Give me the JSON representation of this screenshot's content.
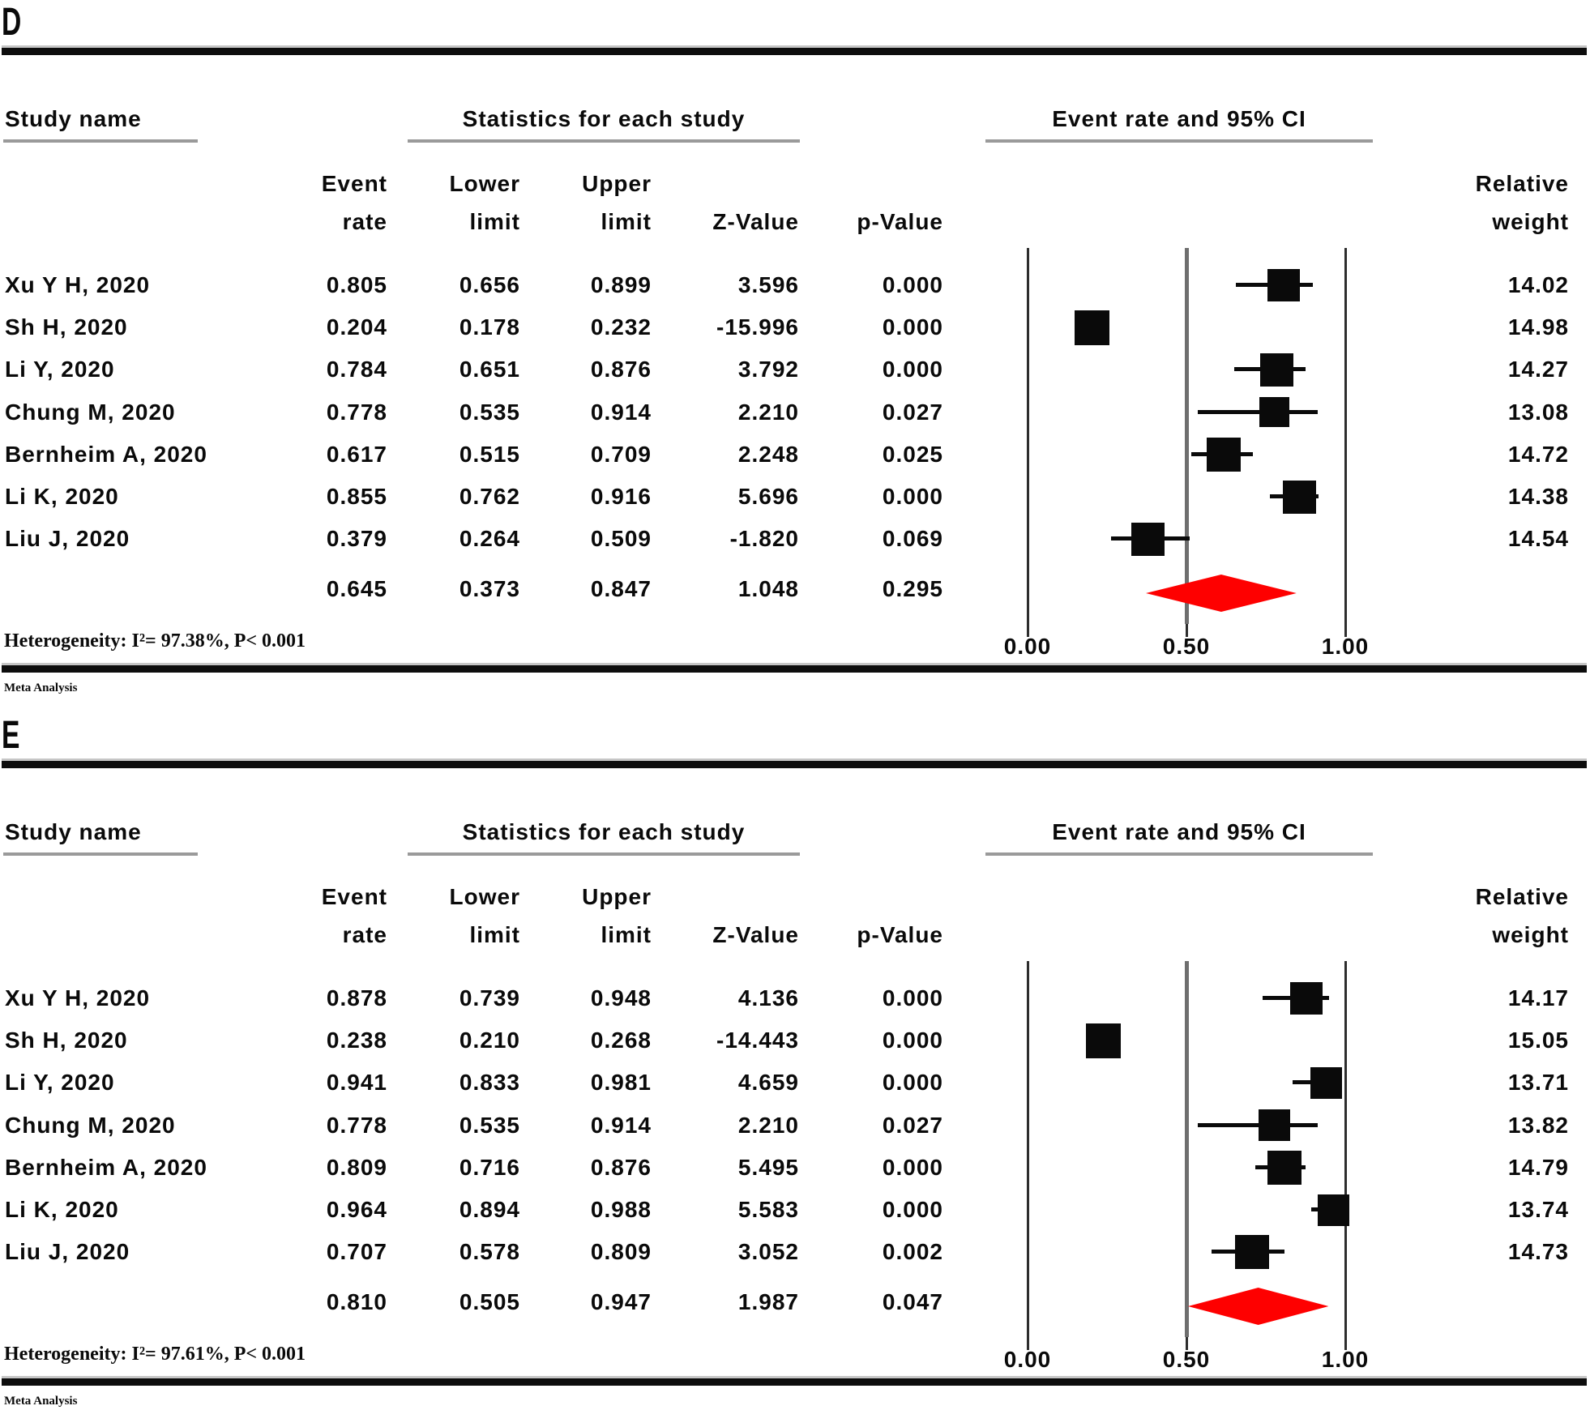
{
  "chart_data": [
    {
      "type": "forest",
      "label": "D",
      "study_col_header": "Study name",
      "column_group_title": "Statistics for each study",
      "title": "Event rate and 95% CI",
      "sub_headers_line1": [
        "Event",
        "Lower",
        "Upper"
      ],
      "sub_headers_line2": [
        "rate",
        "limit",
        "limit",
        "Z-Value",
        "p-Value"
      ],
      "weight_header_line1": "Relative",
      "weight_header_line2": "weight",
      "xlim": [
        0,
        1
      ],
      "x_ticks": [
        0.0,
        0.5,
        1.0
      ],
      "studies": [
        {
          "name": "Xu Y H, 2020",
          "event_rate": 0.805,
          "lower": 0.656,
          "upper": 0.899,
          "z": 3.596,
          "p": 0.0,
          "weight": 14.02
        },
        {
          "name": "Sh H, 2020",
          "event_rate": 0.204,
          "lower": 0.178,
          "upper": 0.232,
          "z": -15.996,
          "p": 0.0,
          "weight": 14.98
        },
        {
          "name": "Li Y, 2020",
          "event_rate": 0.784,
          "lower": 0.651,
          "upper": 0.876,
          "z": 3.792,
          "p": 0.0,
          "weight": 14.27
        },
        {
          "name": "Chung M, 2020",
          "event_rate": 0.778,
          "lower": 0.535,
          "upper": 0.914,
          "z": 2.21,
          "p": 0.027,
          "weight": 13.08
        },
        {
          "name": "Bernheim A, 2020",
          "event_rate": 0.617,
          "lower": 0.515,
          "upper": 0.709,
          "z": 2.248,
          "p": 0.025,
          "weight": 14.72
        },
        {
          "name": "Li K, 2020",
          "event_rate": 0.855,
          "lower": 0.762,
          "upper": 0.916,
          "z": 5.696,
          "p": 0.0,
          "weight": 14.38
        },
        {
          "name": "Liu J, 2020",
          "event_rate": 0.379,
          "lower": 0.264,
          "upper": 0.509,
          "z": -1.82,
          "p": 0.069,
          "weight": 14.54
        }
      ],
      "overall": {
        "event_rate": 0.645,
        "lower": 0.373,
        "upper": 0.847,
        "z": 1.048,
        "p": 0.295
      },
      "heterogeneity": "Heterogeneity: I²= 97.38%, P< 0.001",
      "footer": "Meta Analysis",
      "colors": {
        "marker": "#0a0a0a",
        "diamond": "#fe0000"
      }
    },
    {
      "type": "forest",
      "label": "E",
      "study_col_header": "Study name",
      "column_group_title": "Statistics for each study",
      "title": "Event rate and 95% CI",
      "sub_headers_line1": [
        "Event",
        "Lower",
        "Upper"
      ],
      "sub_headers_line2": [
        "rate",
        "limit",
        "limit",
        "Z-Value",
        "p-Value"
      ],
      "weight_header_line1": "Relative",
      "weight_header_line2": "weight",
      "xlim": [
        0,
        1
      ],
      "x_ticks": [
        0.0,
        0.5,
        1.0
      ],
      "studies": [
        {
          "name": "Xu Y H, 2020",
          "event_rate": 0.878,
          "lower": 0.739,
          "upper": 0.948,
          "z": 4.136,
          "p": 0.0,
          "weight": 14.17
        },
        {
          "name": "Sh H, 2020",
          "event_rate": 0.238,
          "lower": 0.21,
          "upper": 0.268,
          "z": -14.443,
          "p": 0.0,
          "weight": 15.05
        },
        {
          "name": "Li Y, 2020",
          "event_rate": 0.941,
          "lower": 0.833,
          "upper": 0.981,
          "z": 4.659,
          "p": 0.0,
          "weight": 13.71
        },
        {
          "name": "Chung M, 2020",
          "event_rate": 0.778,
          "lower": 0.535,
          "upper": 0.914,
          "z": 2.21,
          "p": 0.027,
          "weight": 13.82
        },
        {
          "name": "Bernheim A, 2020",
          "event_rate": 0.809,
          "lower": 0.716,
          "upper": 0.876,
          "z": 5.495,
          "p": 0.0,
          "weight": 14.79
        },
        {
          "name": "Li K, 2020",
          "event_rate": 0.964,
          "lower": 0.894,
          "upper": 0.988,
          "z": 5.583,
          "p": 0.0,
          "weight": 13.74
        },
        {
          "name": "Liu J, 2020",
          "event_rate": 0.707,
          "lower": 0.578,
          "upper": 0.809,
          "z": 3.052,
          "p": 0.002,
          "weight": 14.73
        }
      ],
      "overall": {
        "event_rate": 0.81,
        "lower": 0.505,
        "upper": 0.947,
        "z": 1.987,
        "p": 0.047
      },
      "heterogeneity": "Heterogeneity: I²= 97.61%, P< 0.001",
      "footer": "Meta Analysis",
      "colors": {
        "marker": "#0a0a0a",
        "diamond": "#fe0000"
      }
    }
  ]
}
